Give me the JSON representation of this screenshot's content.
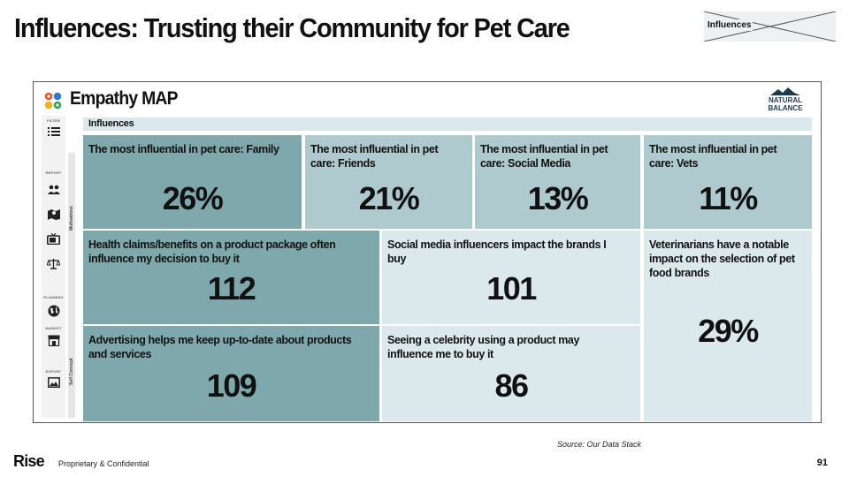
{
  "slide": {
    "title": "Influences: Trusting their Community for Pet Care",
    "tag": "Influences"
  },
  "panel": {
    "title": "Empathy MAP",
    "brand_line1": "NATURAL",
    "brand_line2": "BALANCE",
    "section_label": "Influences",
    "sidebar": {
      "filter_label": "FILTER",
      "report_label": "REPORT",
      "planning_label": "PLANNING",
      "market_label": "MARKET",
      "export_label": "EXPORT",
      "rail_motivations": "Motivations",
      "rail_self_concept": "Self Concept"
    },
    "top_cells": [
      {
        "label": "The most influential in pet care: Family",
        "value": "26%"
      },
      {
        "label": "The most influential in pet care: Friends",
        "value": "21%"
      },
      {
        "label": "The most influential in pet care: Social Media",
        "value": "13%"
      },
      {
        "label": "The most influential in pet care: Vets",
        "value": "11%"
      }
    ],
    "index_cells": [
      {
        "label": "Health claims/benefits on a product package often influence my decision to buy it",
        "value": "112"
      },
      {
        "label": "Social media influencers impact the brands I buy",
        "value": "101"
      },
      {
        "label": "Advertising helps me keep up-to-date about products and services",
        "value": "109"
      },
      {
        "label": "Seeing a celebrity using a product may influence me to buy it",
        "value": "86"
      }
    ],
    "vet_cell": {
      "label": "Veterinarians have a notable impact on the selection of pet food brands",
      "value": "29%"
    }
  },
  "footer": {
    "source": "Source: Our Data Stack",
    "brand": "Rise",
    "confidential": "Proprietary & Confidential",
    "page_number": "91"
  },
  "colors": {
    "dark_cell": "#7fa8ad",
    "mid_cell": "#afcace",
    "light_cell": "#dce9ec"
  }
}
